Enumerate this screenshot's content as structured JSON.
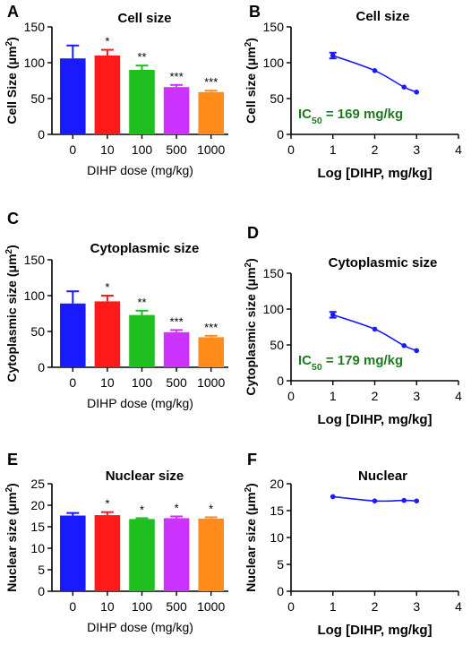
{
  "chart_data": [
    {
      "panel": "A",
      "type": "bar",
      "title": "Cell size",
      "xlabel": "DIHP dose  (mg/kg)",
      "ylabel": "Cell Size (μm²)",
      "categories": [
        "0",
        "10",
        "100",
        "500",
        "1000"
      ],
      "values": [
        106,
        110,
        90,
        66,
        59
      ],
      "errors": [
        18,
        8,
        6,
        3,
        2
      ],
      "significance": [
        "",
        "*",
        "**",
        "***",
        "***"
      ],
      "ylim": [
        0,
        150
      ],
      "yticks": [
        0,
        50,
        100,
        150
      ]
    },
    {
      "panel": "B",
      "type": "line",
      "title": "Cell size",
      "xlabel": "Log [DIHP, mg/kg]",
      "ylabel": "Cell size (μm²)",
      "x": [
        1,
        2,
        2.7,
        3
      ],
      "y": [
        110,
        89,
        66,
        59
      ],
      "errors": [
        4,
        0,
        0,
        0
      ],
      "xlim": [
        0,
        4
      ],
      "xticks": [
        0,
        1,
        2,
        3,
        4
      ],
      "ylim": [
        0,
        150
      ],
      "yticks": [
        0,
        50,
        100,
        150
      ],
      "annotation": "IC50 = 169 mg/kg",
      "annotation_color": "#1f7a1f"
    },
    {
      "panel": "C",
      "type": "bar",
      "title": "Cytoplasmic size",
      "xlabel": "DIHP dose  (mg/kg)",
      "ylabel": "Cytoplasmic size (μm²)",
      "categories": [
        "0",
        "10",
        "100",
        "500",
        "1000"
      ],
      "values": [
        89,
        92,
        73,
        49,
        42
      ],
      "errors": [
        17,
        8,
        6,
        3,
        2
      ],
      "significance": [
        "",
        "*",
        "**",
        "***",
        "***"
      ],
      "ylim": [
        0,
        150
      ],
      "yticks": [
        0,
        50,
        100,
        150
      ]
    },
    {
      "panel": "D",
      "type": "line",
      "title": "Cytoplasmic size",
      "xlabel": "Log [DIHP, mg/kg]",
      "ylabel": "Cytoplasmic size (μm²)",
      "x": [
        1,
        2,
        2.7,
        3
      ],
      "y": [
        92,
        72,
        49,
        42
      ],
      "errors": [
        4,
        0,
        0,
        0
      ],
      "xlim": [
        0,
        4
      ],
      "xticks": [
        0,
        1,
        2,
        3,
        4
      ],
      "ylim": [
        0,
        150
      ],
      "yticks": [
        0,
        50,
        100,
        150
      ],
      "annotation": "IC50 = 179 mg/kg",
      "annotation_color": "#1f7a1f"
    },
    {
      "panel": "E",
      "type": "bar",
      "title": "Nuclear size",
      "xlabel": "DIHP dose  (mg/kg)",
      "ylabel": "Nuclear size (μm²)",
      "categories": [
        "0",
        "10",
        "100",
        "500",
        "1000"
      ],
      "values": [
        17.6,
        17.7,
        16.8,
        17.0,
        16.9
      ],
      "errors": [
        0.6,
        0.7,
        0.2,
        0.4,
        0.3
      ],
      "significance": [
        "",
        "*",
        "*",
        "*",
        "*"
      ],
      "ylim": [
        0,
        25
      ],
      "yticks": [
        0,
        5,
        10,
        15,
        20,
        25
      ]
    },
    {
      "panel": "F",
      "type": "line",
      "title": "Nuclear",
      "xlabel": "Log [DIHP, mg/kg]",
      "ylabel": "Nuclear size (μm²)",
      "x": [
        1,
        2,
        2.7,
        3
      ],
      "y": [
        17.6,
        16.8,
        16.9,
        16.8
      ],
      "errors": [
        0,
        0,
        0,
        0
      ],
      "xlim": [
        0,
        4
      ],
      "xticks": [
        0,
        1,
        2,
        3,
        4
      ],
      "ylim": [
        0,
        20
      ],
      "yticks": [
        0,
        5,
        10,
        15,
        20
      ],
      "annotation": "",
      "annotation_color": "#1f7a1f"
    }
  ],
  "colors": {
    "bars": [
      "#1a1aff",
      "#ff1a1a",
      "#1fbf1f",
      "#cc33ff",
      "#ff8c1a"
    ],
    "line": "#1a1aff",
    "axis": "#000000"
  }
}
